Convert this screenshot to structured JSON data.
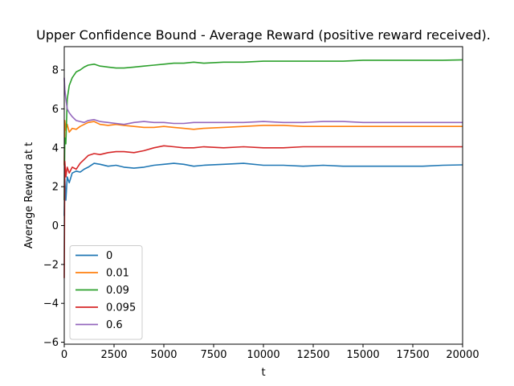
{
  "chart_data": {
    "type": "line",
    "title": "Upper Confidence Bound - Average Reward (positive reward received).",
    "xlabel": "t",
    "ylabel": "Average Reward at t",
    "xlim": [
      0,
      20000
    ],
    "ylim": [
      -6.1,
      9.2
    ],
    "xticks": [
      0,
      2500,
      5000,
      7500,
      10000,
      12500,
      15000,
      17500,
      20000
    ],
    "xtick_labels": [
      "0",
      "2500",
      "5000",
      "7500",
      "10000",
      "12500",
      "15000",
      "17500",
      "20000"
    ],
    "yticks": [
      -6,
      -4,
      -2,
      0,
      2,
      4,
      6,
      8
    ],
    "ytick_labels": [
      "−6",
      "−4",
      "−2",
      "0",
      "2",
      "4",
      "6",
      "8"
    ],
    "legend_position": "lower-left",
    "series": [
      {
        "name": "0",
        "color": "#1f77b4",
        "x": [
          0,
          30,
          80,
          150,
          250,
          400,
          600,
          800,
          1000,
          1200,
          1500,
          1800,
          2200,
          2600,
          3000,
          3500,
          4000,
          4500,
          5000,
          5500,
          6000,
          6500,
          7000,
          8000,
          9000,
          10000,
          11000,
          12000,
          13000,
          14000,
          15000,
          16000,
          17000,
          18000,
          19000,
          20000
        ],
        "values": [
          0.5,
          2.4,
          1.3,
          2.5,
          2.2,
          2.7,
          2.8,
          2.75,
          2.9,
          3.0,
          3.2,
          3.15,
          3.05,
          3.1,
          3.0,
          2.95,
          3.0,
          3.1,
          3.15,
          3.2,
          3.15,
          3.05,
          3.1,
          3.15,
          3.2,
          3.1,
          3.1,
          3.05,
          3.1,
          3.05,
          3.05,
          3.05,
          3.05,
          3.05,
          3.1,
          3.12
        ]
      },
      {
        "name": "0.01",
        "color": "#ff7f0e",
        "x": [
          0,
          30,
          80,
          150,
          250,
          400,
          600,
          800,
          1000,
          1200,
          1500,
          1800,
          2200,
          2600,
          3000,
          3500,
          4000,
          4500,
          5000,
          5500,
          6000,
          6500,
          7000,
          8000,
          9000,
          10000,
          11000,
          12000,
          13000,
          14000,
          15000,
          16000,
          17000,
          18000,
          19000,
          20000
        ],
        "values": [
          3.1,
          5.4,
          4.9,
          5.2,
          4.8,
          5.0,
          4.95,
          5.1,
          5.2,
          5.3,
          5.35,
          5.2,
          5.15,
          5.2,
          5.15,
          5.1,
          5.05,
          5.05,
          5.1,
          5.05,
          5.0,
          4.95,
          5.0,
          5.05,
          5.1,
          5.15,
          5.15,
          5.1,
          5.1,
          5.1,
          5.1,
          5.1,
          5.1,
          5.1,
          5.1,
          5.1
        ]
      },
      {
        "name": "0.09",
        "color": "#2ca02c",
        "x": [
          0,
          30,
          80,
          150,
          250,
          400,
          600,
          800,
          1000,
          1200,
          1500,
          1800,
          2200,
          2600,
          3000,
          3500,
          4000,
          4500,
          5000,
          5500,
          6000,
          6500,
          7000,
          8000,
          9000,
          10000,
          11000,
          12000,
          13000,
          14000,
          15000,
          16000,
          17000,
          18000,
          19000,
          20000
        ],
        "values": [
          1.3,
          4.5,
          4.2,
          6.5,
          7.2,
          7.6,
          7.9,
          8.0,
          8.15,
          8.25,
          8.3,
          8.2,
          8.15,
          8.1,
          8.1,
          8.15,
          8.2,
          8.25,
          8.3,
          8.35,
          8.35,
          8.4,
          8.35,
          8.4,
          8.4,
          8.45,
          8.45,
          8.45,
          8.45,
          8.45,
          8.5,
          8.5,
          8.5,
          8.5,
          8.5,
          8.52
        ]
      },
      {
        "name": "0.095",
        "color": "#d62728",
        "x": [
          0,
          30,
          80,
          150,
          250,
          400,
          600,
          800,
          1000,
          1200,
          1500,
          1800,
          2200,
          2600,
          3000,
          3500,
          4000,
          4500,
          5000,
          5500,
          6000,
          6500,
          7000,
          8000,
          9000,
          10000,
          11000,
          12000,
          13000,
          14000,
          15000,
          16000,
          17000,
          18000,
          19000,
          20000
        ],
        "values": [
          -2.7,
          3.3,
          2.5,
          3.0,
          2.7,
          3.0,
          2.9,
          3.2,
          3.4,
          3.6,
          3.7,
          3.65,
          3.75,
          3.8,
          3.8,
          3.75,
          3.85,
          4.0,
          4.1,
          4.05,
          4.0,
          4.0,
          4.05,
          4.0,
          4.05,
          4.0,
          4.0,
          4.05,
          4.05,
          4.05,
          4.05,
          4.05,
          4.05,
          4.05,
          4.05,
          4.05
        ]
      },
      {
        "name": "0.6",
        "color": "#9467bd",
        "x": [
          0,
          30,
          80,
          150,
          250,
          400,
          600,
          800,
          1000,
          1200,
          1500,
          1800,
          2200,
          2600,
          3000,
          3500,
          4000,
          4500,
          5000,
          5500,
          6000,
          6500,
          7000,
          8000,
          9000,
          10000,
          11000,
          12000,
          13000,
          14000,
          15000,
          16000,
          17000,
          18000,
          19000,
          20000
        ],
        "values": [
          7.6,
          7.0,
          6.5,
          6.0,
          5.8,
          5.6,
          5.4,
          5.35,
          5.3,
          5.4,
          5.45,
          5.35,
          5.3,
          5.25,
          5.2,
          5.3,
          5.35,
          5.3,
          5.3,
          5.25,
          5.25,
          5.3,
          5.3,
          5.3,
          5.3,
          5.35,
          5.3,
          5.3,
          5.35,
          5.35,
          5.3,
          5.3,
          5.3,
          5.3,
          5.3,
          5.3
        ]
      }
    ]
  }
}
